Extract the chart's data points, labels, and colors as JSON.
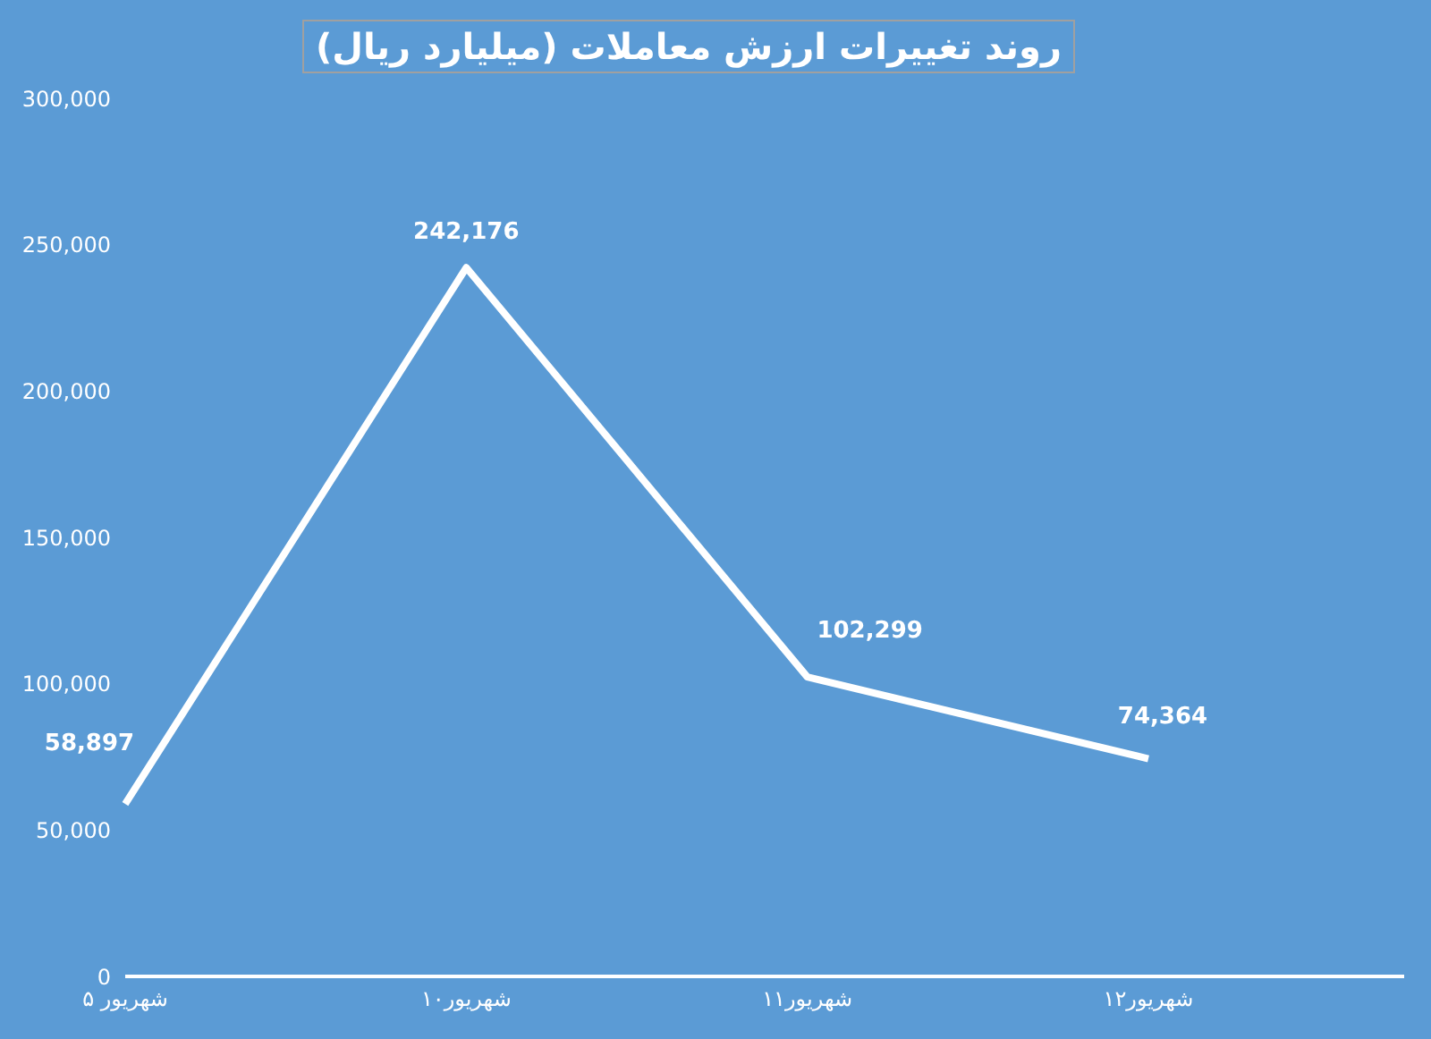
{
  "chart_data": {
    "type": "line",
    "title": "روند تغییرات ارزش معاملات (میلیارد ریال)",
    "categories": [
      "۵ شهریور",
      "۱۰شهریور",
      "۱۱شهریور",
      "۱۲شهریور"
    ],
    "series": [
      {
        "color": "#ffffff",
        "values": [
          58897,
          242176,
          102299,
          74364
        ],
        "value_labels": [
          "58,897",
          "242,176",
          "102,299",
          "74,364"
        ]
      }
    ],
    "ylim": [
      0,
      300000
    ],
    "yticks": [
      0,
      {
        "value": 50000,
        "label": "50,000"
      },
      {
        "value": 100000,
        "label": "100,000"
      },
      {
        "value": 150000,
        "label": "150,000"
      },
      {
        "value": 200000,
        "label": "200,000"
      },
      {
        "value": 250000,
        "label": "250,000"
      },
      {
        "value": 300000,
        "label": "300,000"
      }
    ],
    "grid": false,
    "legend": false,
    "marker": "none",
    "line_style": "solid"
  }
}
